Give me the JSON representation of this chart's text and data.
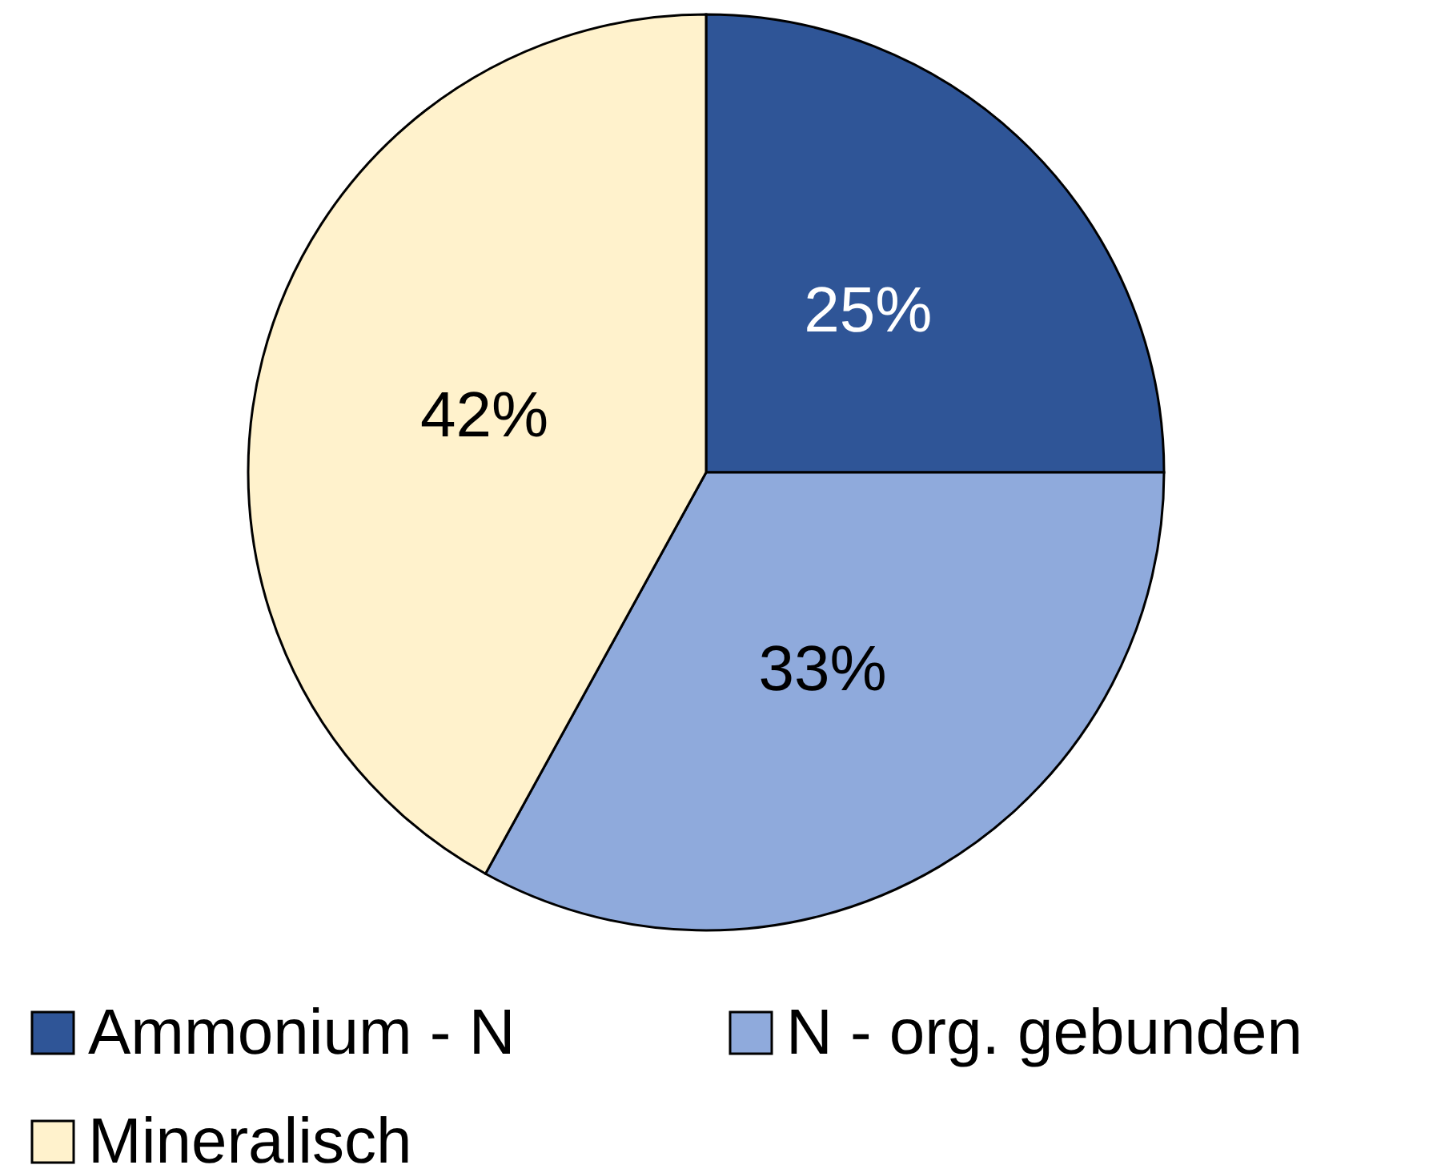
{
  "chart_data": {
    "type": "pie",
    "categories": [
      "Ammonium - N",
      "N - org. gebunden",
      "Mineralisch"
    ],
    "values": [
      25,
      33,
      42
    ],
    "colors": [
      "#2f5597",
      "#8faadc",
      "#fff2cc"
    ],
    "value_labels": [
      "25%",
      "33%",
      "42%"
    ],
    "legend": "bottom"
  }
}
